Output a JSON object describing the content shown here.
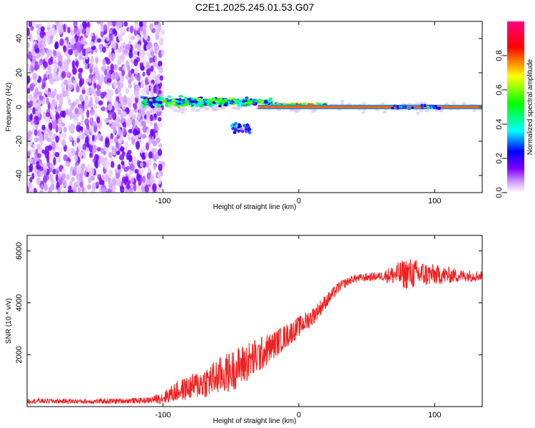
{
  "title": "C2E1.2025.245.01.53.G07",
  "chart_data": [
    {
      "type": "heatmap",
      "xlabel": "Height of straight line (km)",
      "ylabel": "Frequency (Hz)",
      "xlim": [
        -200,
        135
      ],
      "ylim": [
        -50,
        50
      ],
      "xticks": [
        -100,
        0,
        100
      ],
      "xtick_labels": [
        "-100",
        "0",
        "100"
      ],
      "yticks": [
        -40,
        -20,
        0,
        20,
        40
      ],
      "ytick_labels": [
        "-40",
        "-20",
        "0",
        "20",
        "40"
      ],
      "colorbar": {
        "label": "Normalized spectral amplitude",
        "range": [
          0,
          1
        ],
        "ticks": [
          0.0,
          0.2,
          0.4,
          0.6,
          0.8
        ],
        "tick_labels": [
          "0.0",
          "0.2",
          "0.4",
          "0.6",
          "0.8"
        ],
        "colors": [
          "#ffffff",
          "#8000ff",
          "#0000ff",
          "#00ffff",
          "#00ff00",
          "#ffff00",
          "#ff0000",
          "#ff0080"
        ]
      },
      "features": [
        {
          "name": "noise",
          "x_range": [
            -200,
            -100
          ],
          "freq_range": [
            -50,
            50
          ],
          "amplitude": 0.1
        },
        {
          "name": "scattered-signal",
          "x_range": [
            -115,
            -20
          ],
          "freq_center": 3,
          "freq_spread": 6,
          "amplitude": 0.5
        },
        {
          "name": "converging-signal",
          "x_range": [
            -20,
            20
          ],
          "freq_center": 1,
          "freq_spread": 2,
          "amplitude": 0.75
        },
        {
          "name": "tone-line",
          "x_range": [
            -30,
            135
          ],
          "freq": 0,
          "amplitude": 1.0
        },
        {
          "name": "fading-tail",
          "x_range": [
            -50,
            -35
          ],
          "freq_center": -12,
          "freq_spread": 6,
          "amplitude": 0.3
        }
      ]
    },
    {
      "type": "line",
      "xlabel": "Height of straight line (km)",
      "ylabel": "SNR (10 * v/v)",
      "xlim": [
        -200,
        135
      ],
      "ylim": [
        0,
        6600
      ],
      "xticks": [
        -100,
        0,
        100
      ],
      "xtick_labels": [
        "-100",
        "0",
        "100"
      ],
      "yticks": [
        2000,
        4000,
        6000
      ],
      "ytick_labels": [
        "2000",
        "4000",
        "6000"
      ],
      "color": "#ee2222",
      "series": [
        {
          "name": "SNR",
          "x": [
            -200,
            -150,
            -110,
            -100,
            -90,
            -80,
            -70,
            -60,
            -50,
            -40,
            -30,
            -20,
            -10,
            0,
            10,
            20,
            30,
            40,
            60,
            80,
            100,
            120,
            135
          ],
          "values": [
            200,
            180,
            220,
            300,
            500,
            650,
            800,
            1000,
            1200,
            1500,
            1800,
            2200,
            2600,
            3000,
            3400,
            4000,
            4600,
            4900,
            5000,
            5000,
            5000,
            5000,
            5000
          ],
          "noise": [
            120,
            120,
            140,
            300,
            500,
            600,
            750,
            900,
            1000,
            1000,
            900,
            700,
            600,
            500,
            450,
            350,
            250,
            200,
            200,
            800,
            500,
            300,
            250
          ]
        }
      ]
    }
  ]
}
